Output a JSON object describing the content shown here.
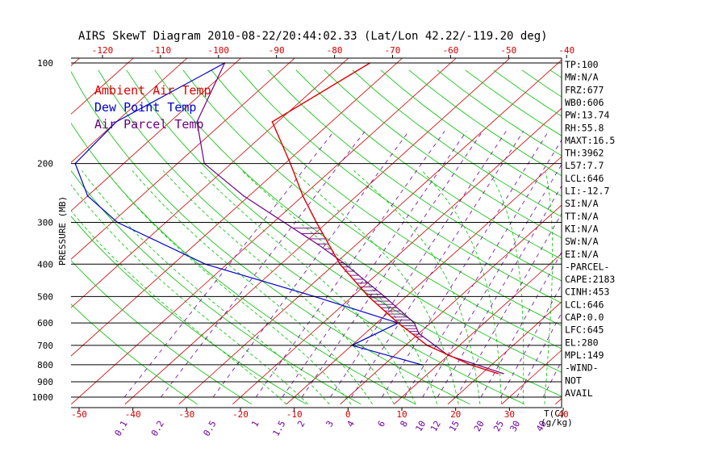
{
  "title": "AIRS SkewT Diagram 2010-08-22/20:44:02.33 (Lat/Lon 42.22/-119.20 deg)",
  "colors": {
    "ambient": "#e00000",
    "dewpoint": "#0000d0",
    "parcel": "#6a0080",
    "isotherm": "#d00000",
    "dry_adiabat": "#00c000",
    "moist_adiabat": "#00c000",
    "mixing_ratio": "#7000a0",
    "axis": "#000000",
    "top_tick_labels": "#d00000",
    "bottom_tick_labels": "#d00000",
    "mixing_labels": "#7000a0"
  },
  "legend": [
    "Ambient Air Temp",
    "Dew Point Temp",
    "Air Parcel Temp"
  ],
  "ylabel": "PRESSURE (MB)",
  "bottom_unit_label": "T(C)",
  "mixing_unit_label": "(g/kg)",
  "chart_data": {
    "type": "line",
    "title": "AIRS SkewT Diagram 2010-08-22/20:44:02.33 (Lat/Lon 42.22/-119.20 deg)",
    "ylabel": "PRESSURE (MB)",
    "xlabel": "T(C)",
    "y_scale": "log",
    "ylim": [
      1000,
      100
    ],
    "xlim_bottom": [
      -50,
      40
    ],
    "pressure_ticks": [
      100,
      200,
      300,
      400,
      500,
      600,
      700,
      800,
      900,
      1000
    ],
    "top_temp_ticks": [
      -120,
      -110,
      -100,
      -90,
      -80,
      -70,
      -60,
      -50,
      -40
    ],
    "bottom_temp_ticks": [
      -50,
      -40,
      -30,
      -20,
      -10,
      0,
      10,
      20,
      30,
      40
    ],
    "mixing_ratio_labels": [
      "0.1",
      "0.2",
      "0.5",
      "1",
      "1.5",
      "2",
      "3",
      "4",
      "6",
      "8",
      "10",
      "12",
      "15",
      "20",
      "25",
      "30",
      "40"
    ],
    "mixing_ratio_values": [
      0.1,
      0.2,
      0.5,
      1,
      1.5,
      2,
      3,
      4,
      6,
      8,
      10,
      12,
      15,
      20,
      25,
      30,
      40
    ],
    "series": [
      {
        "name": "Ambient Air Temp",
        "points": [
          [
            100,
            -65
          ],
          [
            150,
            -71
          ],
          [
            200,
            -59
          ],
          [
            250,
            -50
          ],
          [
            300,
            -42
          ],
          [
            400,
            -29
          ],
          [
            500,
            -17
          ],
          [
            600,
            -6
          ],
          [
            700,
            4
          ],
          [
            800,
            16
          ],
          [
            850,
            23
          ]
        ]
      },
      {
        "name": "Dew Point Temp",
        "points": [
          [
            100,
            -92
          ],
          [
            150,
            -100
          ],
          [
            200,
            -99
          ],
          [
            250,
            -90
          ],
          [
            300,
            -79
          ],
          [
            400,
            -54
          ],
          [
            500,
            -27
          ],
          [
            600,
            -6
          ],
          [
            700,
            -10
          ],
          [
            800,
            7
          ]
        ]
      },
      {
        "name": "Air Parcel Temp",
        "points": [
          [
            100,
            -92
          ],
          [
            150,
            -85
          ],
          [
            200,
            -75
          ],
          [
            250,
            -61
          ],
          [
            300,
            -48
          ],
          [
            350,
            -37
          ],
          [
            400,
            -28
          ],
          [
            500,
            -14
          ],
          [
            600,
            -3
          ],
          [
            645,
            0
          ],
          [
            750,
            10
          ],
          [
            850,
            24
          ]
        ]
      }
    ]
  },
  "indices": [
    "TP:100",
    "MW:N/A",
    "FRZ:677",
    "WB0:606",
    "PW:13.74",
    "RH:55.8",
    "MAXT:16.5",
    "TH:3962",
    "L57:7.7",
    "LCL:646",
    "LI:-12.7",
    "SI:N/A",
    "TT:N/A",
    "KI:N/A",
    "SW:N/A",
    "EI:N/A",
    "-PARCEL-",
    "CAPE:2183",
    "CINH:453",
    "LCL:646",
    "CAP:0.0",
    "LFC:645",
    "EL:280",
    "MPL:149",
    "-WIND-",
    "NOT",
    "AVAIL"
  ]
}
